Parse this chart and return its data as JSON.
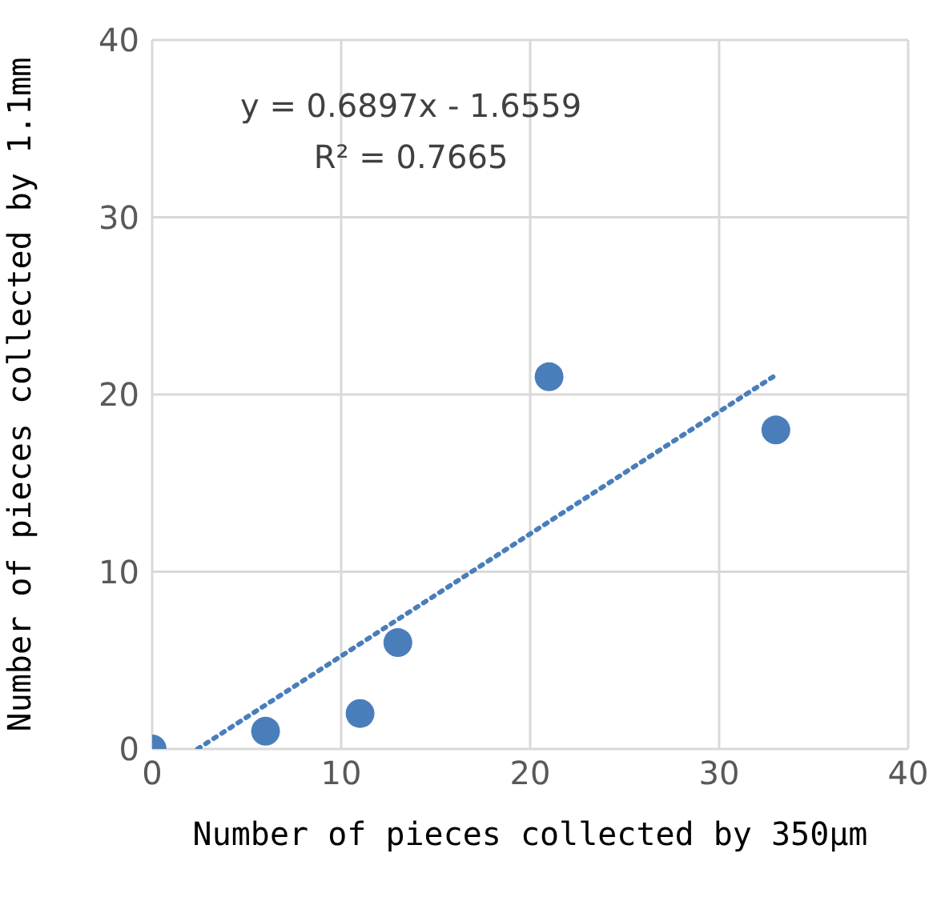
{
  "chart_data": {
    "type": "scatter",
    "xlabel": "Number of pieces collected by 350μm",
    "ylabel": "Number of pieces collected by 1.1mm",
    "xlim": [
      0,
      40
    ],
    "xticks": [
      0,
      10,
      20,
      30,
      40
    ],
    "ylim": [
      0,
      40
    ],
    "yticks": [
      0,
      10,
      20,
      30,
      40
    ],
    "grid": true,
    "marker": "circle",
    "series": [
      {
        "color": "#4a7ebb",
        "x": [
          0,
          6,
          11,
          13,
          21,
          33
        ],
        "values": [
          0,
          1,
          2,
          6,
          21,
          18
        ]
      },
      {
        "type": "line",
        "color": "#4a7ebb",
        "line_style": "dotted",
        "marker": "none",
        "x": [
          2.4,
          33
        ],
        "values": [
          0,
          21.1
        ]
      }
    ],
    "annotations": [
      "y = 0.6897x - 1.6559",
      "R² = 0.7665"
    ]
  }
}
